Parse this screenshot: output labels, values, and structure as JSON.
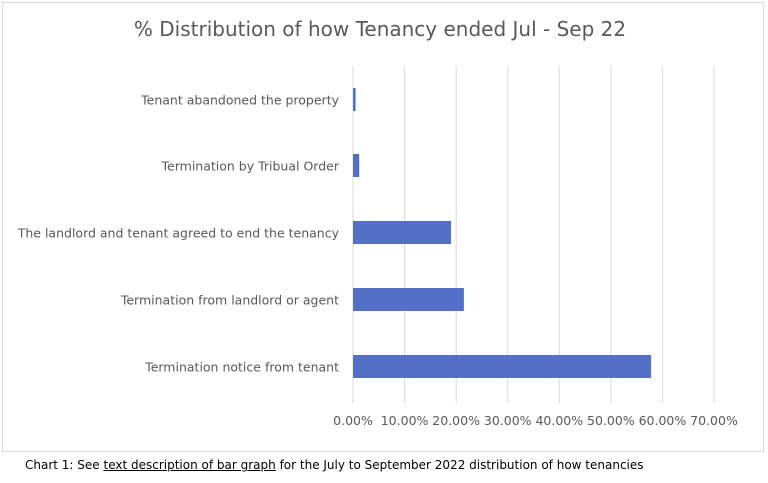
{
  "chart_data": {
    "type": "bar",
    "orientation": "horizontal",
    "title": "% Distribution of how Tenancy ended Jul - Sep 22",
    "categories": [
      "Tenant abandoned the property",
      "Termination by Tribual Order",
      "The landlord and tenant agreed to end the tenancy",
      "Termination from landlord or agent",
      "Termination notice from tenant"
    ],
    "values": [
      0.5,
      1.2,
      19.0,
      21.5,
      57.8
    ],
    "x_ticks": [
      "0.00%",
      "10.00%",
      "20.00%",
      "30.00%",
      "40.00%",
      "50.00%",
      "60.00%",
      "70.00%"
    ],
    "xlim": [
      0,
      70
    ],
    "grid": "vertical",
    "bar_color": "#5470c6"
  },
  "caption": {
    "prefix": "Chart 1: See ",
    "link_text": "text description of bar graph",
    "suffix": " for the July to September 2022 distribution of how tenancies"
  }
}
